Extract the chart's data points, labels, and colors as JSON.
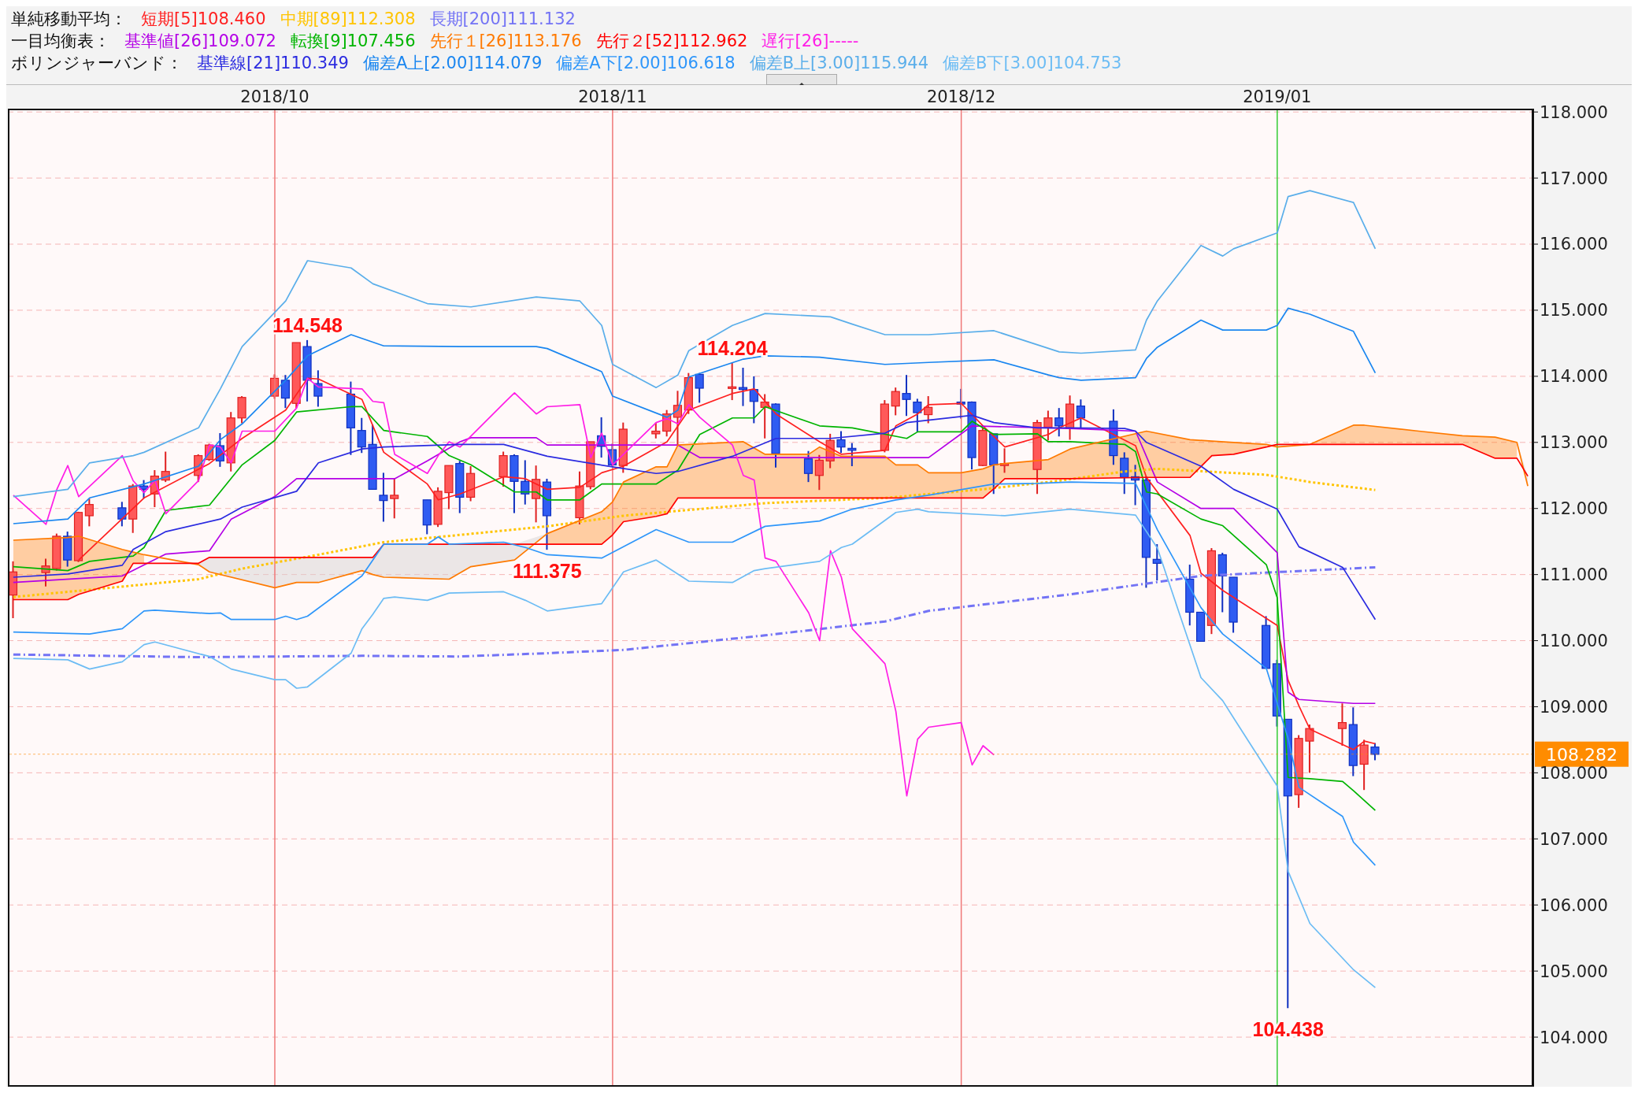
{
  "chart_data": {
    "type": "candlestick",
    "legend": "top",
    "grid": "y",
    "xlim": [
      "2018-09-07",
      "2019-01-24"
    ],
    "xticks": [
      {
        "value": "2018-10-01",
        "label": "2018/10"
      },
      {
        "value": "2018-11-01",
        "label": "2018/11"
      },
      {
        "value": "2018-12-03",
        "label": "2018/12"
      },
      {
        "value": "2019-01-01",
        "label": "2019/01"
      }
    ],
    "ylim": [
      103.25,
      118.05
    ],
    "yticks": [
      {
        "value": 104,
        "label": "104.000"
      },
      {
        "value": 105,
        "label": "105.000"
      },
      {
        "value": 106,
        "label": "106.000"
      },
      {
        "value": 107,
        "label": "107.000"
      },
      {
        "value": 108,
        "label": "108.000"
      },
      {
        "value": 109,
        "label": "109.000"
      },
      {
        "value": 110,
        "label": "110.000"
      },
      {
        "value": 111,
        "label": "111.000"
      },
      {
        "value": 112,
        "label": "112.000"
      },
      {
        "value": 113,
        "label": "113.000"
      },
      {
        "value": 114,
        "label": "114.000"
      },
      {
        "value": 115,
        "label": "115.000"
      },
      {
        "value": 116,
        "label": "116.000"
      },
      {
        "value": 117,
        "label": "117.000"
      },
      {
        "value": 118,
        "label": "118.000"
      }
    ],
    "x": [
      "2018-09-07",
      "2018-09-10",
      "2018-09-11",
      "2018-09-12",
      "2018-09-13",
      "2018-09-14",
      "2018-09-17",
      "2018-09-18",
      "2018-09-19",
      "2018-09-20",
      "2018-09-21",
      "2018-09-24",
      "2018-09-25",
      "2018-09-26",
      "2018-09-27",
      "2018-09-28",
      "2018-10-01",
      "2018-10-02",
      "2018-10-03",
      "2018-10-04",
      "2018-10-05",
      "2018-10-08",
      "2018-10-09",
      "2018-10-10",
      "2018-10-11",
      "2018-10-12",
      "2018-10-15",
      "2018-10-16",
      "2018-10-17",
      "2018-10-18",
      "2018-10-19",
      "2018-10-22",
      "2018-10-23",
      "2018-10-24",
      "2018-10-25",
      "2018-10-26",
      "2018-10-29",
      "2018-10-30",
      "2018-10-31",
      "2018-11-01",
      "2018-11-02",
      "2018-11-05",
      "2018-11-06",
      "2018-11-07",
      "2018-11-08",
      "2018-11-09",
      "2018-11-12",
      "2018-11-13",
      "2018-11-14",
      "2018-11-15",
      "2018-11-16",
      "2018-11-19",
      "2018-11-20",
      "2018-11-21",
      "2018-11-22",
      "2018-11-23",
      "2018-11-26",
      "2018-11-27",
      "2018-11-28",
      "2018-11-29",
      "2018-11-30",
      "2018-12-03",
      "2018-12-04",
      "2018-12-05",
      "2018-12-06",
      "2018-12-07",
      "2018-12-10",
      "2018-12-11",
      "2018-12-12",
      "2018-12-13",
      "2018-12-14",
      "2018-12-17",
      "2018-12-18",
      "2018-12-19",
      "2018-12-20",
      "2018-12-21",
      "2018-12-24",
      "2018-12-25",
      "2018-12-26",
      "2018-12-27",
      "2018-12-28",
      "2018-12-31",
      "2019-01-01",
      "2019-01-02",
      "2019-01-03",
      "2019-01-04",
      "2019-01-07",
      "2019-01-08",
      "2019-01-09",
      "2019-01-10"
    ],
    "ohlc": [
      [
        110.69,
        111.2,
        110.34,
        111.04
      ],
      [
        111.03,
        111.24,
        110.82,
        111.13
      ],
      [
        111.09,
        111.62,
        111.06,
        111.58
      ],
      [
        111.58,
        111.65,
        111.12,
        111.22
      ],
      [
        111.21,
        111.95,
        111.19,
        111.94
      ],
      [
        111.89,
        112.15,
        111.73,
        112.06
      ],
      [
        112.01,
        112.1,
        111.73,
        111.84
      ],
      [
        111.84,
        112.37,
        111.63,
        112.34
      ],
      [
        112.34,
        112.43,
        112.15,
        112.29
      ],
      [
        112.22,
        112.58,
        112.02,
        112.49
      ],
      [
        112.43,
        112.86,
        112.4,
        112.56
      ],
      [
        112.5,
        112.82,
        112.4,
        112.8
      ],
      [
        112.74,
        112.98,
        112.72,
        112.96
      ],
      [
        112.95,
        113.14,
        112.63,
        112.72
      ],
      [
        112.69,
        113.46,
        112.56,
        113.37
      ],
      [
        113.37,
        113.7,
        113.29,
        113.68
      ],
      [
        113.7,
        114.03,
        113.66,
        113.97
      ],
      [
        113.94,
        114.02,
        113.52,
        113.67
      ],
      [
        113.59,
        114.51,
        113.52,
        114.51
      ],
      [
        114.45,
        114.548,
        113.62,
        113.94
      ],
      [
        113.89,
        114.09,
        113.54,
        113.7
      ],
      [
        113.73,
        113.92,
        112.81,
        113.22
      ],
      [
        113.18,
        113.37,
        112.84,
        112.93
      ],
      [
        112.97,
        113.27,
        112.29,
        112.29
      ],
      [
        112.2,
        112.54,
        111.8,
        112.12
      ],
      [
        112.15,
        112.45,
        111.85,
        112.2
      ],
      [
        112.13,
        112.13,
        111.61,
        111.75
      ],
      [
        111.76,
        112.32,
        111.72,
        112.26
      ],
      [
        112.24,
        112.65,
        111.99,
        112.65
      ],
      [
        112.68,
        112.72,
        111.93,
        112.17
      ],
      [
        112.17,
        112.64,
        112.11,
        112.53
      ],
      [
        112.48,
        112.86,
        112.33,
        112.8
      ],
      [
        112.8,
        112.82,
        111.93,
        112.41
      ],
      [
        112.41,
        112.73,
        112.06,
        112.22
      ],
      [
        112.15,
        112.65,
        111.79,
        112.44
      ],
      [
        112.4,
        112.45,
        111.375,
        111.89
      ],
      [
        111.86,
        112.56,
        111.76,
        112.34
      ],
      [
        112.33,
        113.01,
        112.29,
        113.01
      ],
      [
        113.1,
        113.38,
        112.77,
        112.94
      ],
      [
        112.89,
        112.98,
        112.64,
        112.66
      ],
      [
        112.65,
        113.3,
        112.54,
        113.2
      ],
      [
        113.13,
        113.3,
        113.06,
        113.17
      ],
      [
        113.17,
        113.49,
        113.09,
        113.43
      ],
      [
        113.38,
        113.78,
        112.96,
        113.56
      ],
      [
        113.49,
        114.05,
        113.43,
        113.98
      ],
      [
        114.03,
        114.05,
        113.6,
        113.82
      ],
      [
        113.82,
        114.204,
        113.64,
        113.84
      ],
      [
        113.83,
        114.13,
        113.55,
        113.8
      ],
      [
        113.8,
        114.0,
        113.29,
        113.62
      ],
      [
        113.53,
        113.73,
        113.06,
        113.61
      ],
      [
        113.58,
        113.59,
        112.62,
        112.83
      ],
      [
        112.75,
        112.87,
        112.4,
        112.53
      ],
      [
        112.5,
        112.81,
        112.28,
        112.73
      ],
      [
        112.72,
        113.13,
        112.61,
        113.03
      ],
      [
        113.04,
        113.17,
        112.84,
        112.93
      ],
      [
        112.91,
        112.99,
        112.64,
        112.88
      ],
      [
        112.88,
        113.64,
        112.85,
        113.58
      ],
      [
        113.55,
        113.83,
        113.41,
        113.77
      ],
      [
        113.74,
        114.02,
        113.4,
        113.65
      ],
      [
        113.61,
        113.66,
        113.16,
        113.45
      ],
      [
        113.42,
        113.7,
        113.29,
        113.53
      ],
      [
        113.61,
        113.81,
        113.36,
        113.58
      ],
      [
        113.61,
        113.62,
        112.59,
        112.77
      ],
      [
        112.65,
        113.22,
        112.64,
        113.18
      ],
      [
        113.13,
        113.13,
        112.22,
        112.66
      ],
      [
        112.65,
        112.91,
        112.54,
        112.68
      ],
      [
        112.59,
        113.34,
        112.22,
        113.3
      ],
      [
        113.23,
        113.48,
        113.03,
        113.37
      ],
      [
        113.37,
        113.52,
        113.09,
        113.25
      ],
      [
        113.21,
        113.71,
        113.04,
        113.58
      ],
      [
        113.55,
        113.65,
        113.21,
        113.37
      ],
      [
        113.32,
        113.5,
        112.66,
        112.8
      ],
      [
        112.76,
        112.85,
        112.22,
        112.47
      ],
      [
        112.48,
        112.66,
        112.05,
        112.43
      ],
      [
        112.43,
        112.49,
        110.8,
        111.26
      ],
      [
        111.23,
        111.46,
        110.91,
        111.17
      ],
      [
        110.93,
        111.15,
        110.23,
        110.43
      ],
      [
        110.43,
        110.43,
        109.99,
        109.99
      ],
      [
        110.23,
        111.4,
        110.1,
        111.36
      ],
      [
        111.3,
        111.33,
        110.43,
        110.98
      ],
      [
        110.96,
        110.96,
        110.12,
        110.28
      ],
      [
        110.23,
        110.37,
        109.58,
        109.58
      ],
      [
        109.65,
        109.71,
        108.7,
        108.86
      ],
      [
        108.81,
        108.81,
        104.438,
        107.65
      ],
      [
        107.67,
        108.57,
        107.47,
        108.52
      ],
      [
        108.48,
        108.73,
        108.0,
        108.67
      ],
      [
        108.67,
        109.05,
        108.41,
        108.76
      ],
      [
        108.73,
        108.99,
        107.95,
        108.11
      ],
      [
        108.13,
        108.5,
        107.74,
        108.42
      ],
      [
        108.39,
        108.45,
        108.19,
        108.28
      ]
    ],
    "series": [
      {
        "name": "短期[5]108.460",
        "type": "line",
        "color": "#ff2020",
        "x": [
          "2018-09-13",
          "2018-09-19",
          "2018-09-25",
          "2018-09-28",
          "2018-10-02",
          "2018-10-04",
          "2018-10-05",
          "2018-10-09",
          "2018-10-11",
          "2018-10-15",
          "2018-10-16",
          "2018-10-18",
          "2018-10-22",
          "2018-10-24",
          "2018-10-26",
          "2018-10-29",
          "2018-10-31",
          "2018-11-02",
          "2018-11-06",
          "2018-11-08",
          "2018-11-12",
          "2018-11-14",
          "2018-11-16",
          "2018-11-20",
          "2018-11-22",
          "2018-11-26",
          "2018-11-27",
          "2018-11-29",
          "2018-11-30",
          "2018-12-03",
          "2018-12-05",
          "2018-12-07",
          "2018-12-11",
          "2018-12-12",
          "2018-12-14",
          "2018-12-19",
          "2018-12-20",
          "2018-12-24",
          "2018-12-25",
          "2018-12-27",
          "2019-01-01",
          "2019-01-02",
          "2019-01-03",
          "2019-01-04",
          "2019-01-08",
          "2019-01-09",
          "2019-01-10"
        ],
        "values": [
          111.22,
          112.16,
          112.68,
          113.06,
          113.49,
          113.97,
          113.96,
          113.65,
          112.85,
          112.37,
          112.13,
          112.22,
          112.48,
          112.45,
          112.29,
          112.32,
          112.54,
          112.64,
          113.01,
          113.49,
          113.74,
          113.81,
          113.43,
          113.01,
          112.82,
          112.88,
          113.25,
          113.43,
          113.57,
          113.59,
          113.25,
          112.93,
          113.12,
          113.22,
          113.37,
          112.95,
          112.47,
          111.59,
          111.02,
          110.76,
          110.23,
          109.4,
          109.01,
          108.66,
          108.35,
          108.48,
          108.44
        ]
      },
      {
        "name": "中期[89]112.308",
        "type": "line",
        "color": "#ffc400",
        "line_style": "dotted",
        "x": [
          "2018-09-07",
          "2018-09-14",
          "2018-09-24",
          "2018-09-28",
          "2018-10-05",
          "2018-10-11",
          "2018-10-18",
          "2018-10-26",
          "2018-11-02",
          "2018-11-15",
          "2018-11-26",
          "2018-12-05",
          "2018-12-12",
          "2018-12-18",
          "2018-12-21",
          "2018-12-31",
          "2019-01-04",
          "2019-01-10"
        ],
        "values": [
          110.66,
          110.77,
          110.93,
          111.09,
          111.3,
          111.49,
          111.6,
          111.73,
          111.89,
          112.08,
          112.16,
          112.29,
          112.42,
          112.56,
          112.6,
          112.51,
          112.4,
          112.28
        ]
      },
      {
        "name": "長期[200]111.132",
        "type": "line",
        "color": "#7373f5",
        "line_style": "dashed",
        "x": [
          "2018-09-07",
          "2018-09-24",
          "2018-10-09",
          "2018-10-18",
          "2018-10-26",
          "2018-11-02",
          "2018-11-15",
          "2018-11-26",
          "2018-11-30",
          "2018-12-13",
          "2018-12-25",
          "2019-01-10"
        ],
        "values": [
          109.79,
          109.75,
          109.77,
          109.76,
          109.81,
          109.86,
          110.08,
          110.29,
          110.45,
          110.7,
          110.98,
          111.11
        ]
      },
      {
        "name": "基準値[26]109.072",
        "type": "line",
        "color": "#b400e6",
        "x": [
          "2018-09-07",
          "2018-09-17",
          "2018-09-21",
          "2018-09-25",
          "2018-09-27",
          "2018-10-01",
          "2018-10-03",
          "2018-10-12",
          "2018-10-15",
          "2018-10-18",
          "2018-10-19",
          "2018-10-25",
          "2018-10-26",
          "2018-11-07",
          "2018-11-09",
          "2018-11-30",
          "2018-12-04",
          "2018-12-13",
          "2018-12-19",
          "2018-12-21",
          "2018-12-25",
          "2018-12-28",
          "2019-01-01",
          "2019-01-02",
          "2019-01-03",
          "2019-01-08",
          "2019-01-10"
        ],
        "values": [
          110.88,
          110.98,
          111.31,
          111.36,
          111.84,
          112.18,
          112.45,
          112.45,
          112.72,
          113.01,
          113.07,
          113.07,
          112.96,
          112.96,
          112.77,
          112.77,
          113.25,
          113.21,
          113.17,
          112.4,
          112.0,
          112.0,
          111.33,
          109.22,
          109.11,
          109.05,
          109.05
        ]
      },
      {
        "name": "転換[9]107.456",
        "type": "line",
        "color": "#00b400",
        "x": [
          "2018-09-07",
          "2018-09-12",
          "2018-09-14",
          "2018-09-18",
          "2018-09-19",
          "2018-09-21",
          "2018-09-25",
          "2018-09-28",
          "2018-10-01",
          "2018-10-03",
          "2018-10-08",
          "2018-10-09",
          "2018-10-11",
          "2018-10-15",
          "2018-10-17",
          "2018-10-19",
          "2018-10-23",
          "2018-10-25",
          "2018-10-26",
          "2018-10-29",
          "2018-10-31",
          "2018-11-05",
          "2018-11-07",
          "2018-11-09",
          "2018-11-12",
          "2018-11-14",
          "2018-11-15",
          "2018-11-20",
          "2018-11-23",
          "2018-11-28",
          "2018-11-29",
          "2018-12-03",
          "2018-12-04",
          "2018-12-06",
          "2018-12-10",
          "2018-12-11",
          "2018-12-13",
          "2018-12-18",
          "2018-12-19",
          "2018-12-20",
          "2018-12-21",
          "2018-12-25",
          "2018-12-27",
          "2018-12-31",
          "2019-01-01",
          "2019-01-02",
          "2019-01-04",
          "2019-01-07",
          "2019-01-08",
          "2019-01-10"
        ],
        "values": [
          111.12,
          111.06,
          111.2,
          111.28,
          111.41,
          111.97,
          112.05,
          112.66,
          113.03,
          113.46,
          113.54,
          113.54,
          113.18,
          113.09,
          112.8,
          112.66,
          112.25,
          112.25,
          112.13,
          112.13,
          112.37,
          112.37,
          112.58,
          113.12,
          113.37,
          113.37,
          113.54,
          113.25,
          113.22,
          113.06,
          113.16,
          113.16,
          113.32,
          113.12,
          113.13,
          113.01,
          113.01,
          112.97,
          112.86,
          112.25,
          112.22,
          111.84,
          111.74,
          111.15,
          110.65,
          107.93,
          107.91,
          107.87,
          107.73,
          107.43
        ]
      },
      {
        "name": "先行１[26]113.176",
        "type": "line",
        "color": "#ff7a00",
        "x": [
          "2018-09-07",
          "2018-09-12",
          "2018-09-13",
          "2018-09-17",
          "2018-09-18",
          "2018-09-19",
          "2018-09-24",
          "2018-09-25",
          "2018-10-01",
          "2018-10-03",
          "2018-10-05",
          "2018-10-09",
          "2018-10-10",
          "2018-10-11",
          "2018-10-17",
          "2018-10-19",
          "2018-10-23",
          "2018-10-26",
          "2018-10-31",
          "2018-11-01",
          "2018-11-02",
          "2018-11-05",
          "2018-11-06",
          "2018-11-07",
          "2018-11-13",
          "2018-11-15",
          "2018-11-19",
          "2018-11-20",
          "2018-11-22",
          "2018-11-26",
          "2018-11-27",
          "2018-11-29",
          "2018-11-30",
          "2018-12-03",
          "2018-12-05",
          "2018-12-06",
          "2018-12-07",
          "2018-12-11",
          "2018-12-13",
          "2018-12-20",
          "2018-12-24",
          "2018-12-26",
          "2018-12-28",
          "2018-12-31",
          "2019-01-01",
          "2019-01-04",
          "2019-01-08",
          "2019-01-09",
          "2019-01-14",
          "2019-01-18",
          "2019-01-21",
          "2019-01-23",
          "2019-01-24"
        ],
        "values": [
          111.52,
          111.56,
          111.58,
          111.38,
          111.34,
          111.3,
          111.15,
          111.04,
          110.8,
          110.88,
          110.88,
          111.06,
          111.0,
          110.96,
          110.93,
          111.12,
          111.22,
          111.62,
          111.95,
          112.1,
          112.4,
          112.63,
          112.63,
          112.96,
          113.01,
          112.82,
          112.82,
          112.93,
          112.79,
          112.79,
          112.66,
          112.66,
          112.54,
          112.54,
          112.6,
          112.66,
          112.68,
          112.74,
          112.9,
          113.17,
          113.04,
          113.02,
          113.0,
          112.97,
          112.93,
          112.97,
          113.26,
          113.26,
          113.17,
          113.1,
          113.08,
          113.0,
          112.34
        ],
        "upper": [
          111.52,
          111.56,
          111.58,
          111.38,
          111.34,
          111.3,
          null,
          null,
          null,
          null,
          null,
          null,
          null,
          null,
          null,
          null,
          null,
          111.62,
          111.95,
          112.1,
          112.4,
          112.63,
          112.63,
          112.96,
          113.01,
          112.82,
          112.82,
          112.93,
          112.79,
          112.79,
          112.66,
          112.66,
          112.54,
          112.54,
          112.6,
          112.66,
          112.68,
          112.74,
          112.9,
          113.17,
          113.04,
          113.02,
          113.0,
          112.97,
          null,
          112.97,
          113.26,
          113.26,
          113.17,
          113.1,
          113.08,
          113.0,
          null
        ],
        "lower": [
          110.62,
          110.62,
          110.7,
          110.9,
          111.17,
          111.17,
          null,
          null,
          null,
          null,
          null,
          null,
          null,
          null,
          null,
          null,
          null,
          111.46,
          111.46,
          111.6,
          111.8,
          111.88,
          111.92,
          112.16,
          112.16,
          112.16,
          112.16,
          112.16,
          112.16,
          112.16,
          112.16,
          112.16,
          112.16,
          112.16,
          112.16,
          112.3,
          112.45,
          112.45,
          112.45,
          112.47,
          112.47,
          112.8,
          112.82,
          112.93,
          null,
          112.97,
          112.97,
          112.97,
          112.97,
          112.97,
          112.76,
          112.76,
          null
        ]
      },
      {
        "name": "先行２[52]112.962",
        "type": "line",
        "color": "#ff0000",
        "x": [
          "2018-09-07",
          "2018-09-12",
          "2018-09-13",
          "2018-09-17",
          "2018-09-18",
          "2018-09-19",
          "2018-09-24",
          "2018-09-25",
          "2018-10-01",
          "2018-10-03",
          "2018-10-05",
          "2018-10-09",
          "2018-10-10",
          "2018-10-11",
          "2018-10-17",
          "2018-10-19",
          "2018-10-23",
          "2018-10-26",
          "2018-10-31",
          "2018-11-01",
          "2018-11-02",
          "2018-11-05",
          "2018-11-06",
          "2018-11-07",
          "2018-11-13",
          "2018-11-15",
          "2018-11-19",
          "2018-11-20",
          "2018-11-22",
          "2018-11-26",
          "2018-11-27",
          "2018-11-29",
          "2018-11-30",
          "2018-12-03",
          "2018-12-05",
          "2018-12-06",
          "2018-12-07",
          "2018-12-11",
          "2018-12-13",
          "2018-12-20",
          "2018-12-24",
          "2018-12-26",
          "2018-12-28",
          "2018-12-31",
          "2019-01-01",
          "2019-01-04",
          "2019-01-08",
          "2019-01-09",
          "2019-01-14",
          "2019-01-18",
          "2019-01-21",
          "2019-01-23",
          "2019-01-24"
        ],
        "values": [
          110.62,
          110.62,
          110.7,
          110.9,
          111.17,
          111.17,
          111.17,
          111.26,
          111.26,
          111.26,
          111.26,
          111.26,
          111.26,
          111.46,
          111.46,
          111.46,
          111.46,
          111.46,
          111.46,
          111.6,
          111.8,
          111.88,
          111.92,
          112.16,
          112.16,
          112.16,
          112.16,
          112.16,
          112.16,
          112.16,
          112.16,
          112.16,
          112.16,
          112.16,
          112.16,
          112.3,
          112.45,
          112.45,
          112.45,
          112.47,
          112.47,
          112.8,
          112.82,
          112.93,
          112.97,
          112.97,
          112.97,
          112.97,
          112.97,
          112.97,
          112.76,
          112.76,
          112.49
        ]
      },
      {
        "name": "遅行[26]-----",
        "type": "line",
        "color": "#ff1ee6",
        "x": [
          "2018-09-07",
          "2018-09-10",
          "2018-09-11",
          "2018-09-12",
          "2018-09-13",
          "2018-09-17",
          "2018-09-18",
          "2018-09-19",
          "2018-09-20",
          "2018-09-21",
          "2018-09-24",
          "2018-09-25",
          "2018-09-26",
          "2018-09-27",
          "2018-09-28",
          "2018-10-01",
          "2018-10-03",
          "2018-10-04",
          "2018-10-05",
          "2018-10-09",
          "2018-10-10",
          "2018-10-11",
          "2018-10-12",
          "2018-10-15",
          "2018-10-16",
          "2018-10-17",
          "2018-10-18",
          "2018-10-22",
          "2018-10-23",
          "2018-10-25",
          "2018-10-26",
          "2018-10-29",
          "2018-10-30",
          "2018-10-31",
          "2018-11-01",
          "2018-11-05",
          "2018-11-06",
          "2018-11-07",
          "2018-11-08",
          "2018-11-09",
          "2018-11-12",
          "2018-11-13",
          "2018-11-14",
          "2018-11-15",
          "2018-11-16",
          "2018-11-19",
          "2018-11-20",
          "2018-11-21",
          "2018-11-22",
          "2018-11-23",
          "2018-11-26",
          "2018-11-27",
          "2018-11-28",
          "2018-11-29",
          "2018-11-30",
          "2018-12-03",
          "2018-12-04",
          "2018-12-05",
          "2018-12-06"
        ],
        "values": [
          112.2,
          111.76,
          112.29,
          112.65,
          112.18,
          112.8,
          112.42,
          112.24,
          112.43,
          111.92,
          112.42,
          112.96,
          112.93,
          112.69,
          113.17,
          113.17,
          113.52,
          113.97,
          113.84,
          113.81,
          113.62,
          113.6,
          112.82,
          112.53,
          112.8,
          113.01,
          112.93,
          113.59,
          113.75,
          113.43,
          113.54,
          113.57,
          112.77,
          113.14,
          112.66,
          113.3,
          113.36,
          113.28,
          113.57,
          113.38,
          112.96,
          112.5,
          112.43,
          111.25,
          111.2,
          110.42,
          110.0,
          111.36,
          110.96,
          110.18,
          109.65,
          108.93,
          107.65,
          108.51,
          108.69,
          108.76,
          108.12,
          108.41,
          108.27
        ]
      },
      {
        "name": "基準線[21]110.349",
        "type": "line",
        "color": "#2b2be0",
        "x": [
          "2018-09-07",
          "2018-09-12",
          "2018-09-17",
          "2018-09-18",
          "2018-09-21",
          "2018-09-26",
          "2018-09-28",
          "2018-10-03",
          "2018-10-05",
          "2018-10-09",
          "2018-10-11",
          "2018-10-18",
          "2018-10-22",
          "2018-10-26",
          "2018-11-01",
          "2018-11-05",
          "2018-11-07",
          "2018-11-12",
          "2018-11-16",
          "2018-11-21",
          "2018-11-26",
          "2018-11-28",
          "2018-12-04",
          "2018-12-06",
          "2018-12-10",
          "2018-12-13",
          "2018-12-18",
          "2018-12-19",
          "2018-12-20",
          "2018-12-25",
          "2018-12-28",
          "2019-01-01",
          "2019-01-03",
          "2019-01-07",
          "2019-01-10"
        ],
        "values": [
          110.96,
          111.01,
          111.14,
          111.38,
          111.65,
          111.84,
          112.02,
          112.26,
          112.69,
          112.9,
          112.93,
          112.97,
          112.97,
          112.79,
          112.63,
          112.53,
          112.56,
          112.79,
          113.06,
          113.06,
          113.14,
          113.3,
          113.41,
          113.3,
          113.22,
          113.22,
          113.21,
          113.17,
          113.0,
          112.64,
          112.29,
          111.99,
          111.42,
          111.11,
          110.32
        ]
      },
      {
        "name": "偏差A上[2.00]114.079",
        "type": "line",
        "color": "#1a86f0",
        "x": [
          "2018-09-07",
          "2018-09-12",
          "2018-09-14",
          "2018-09-19",
          "2018-09-24",
          "2018-09-26",
          "2018-09-28",
          "2018-10-02",
          "2018-10-04",
          "2018-10-08",
          "2018-10-11",
          "2018-10-18",
          "2018-10-25",
          "2018-10-26",
          "2018-10-31",
          "2018-11-01",
          "2018-11-06",
          "2018-11-07",
          "2018-11-08",
          "2018-11-13",
          "2018-11-15",
          "2018-11-20",
          "2018-11-26",
          "2018-11-30",
          "2018-12-06",
          "2018-12-11",
          "2018-12-12",
          "2018-12-14",
          "2018-12-19",
          "2018-12-20",
          "2018-12-21",
          "2018-12-25",
          "2018-12-27",
          "2018-12-31",
          "2019-01-01",
          "2019-01-02",
          "2019-01-04",
          "2019-01-08",
          "2019-01-10"
        ],
        "values": [
          111.77,
          111.84,
          112.16,
          112.37,
          112.64,
          113.04,
          113.28,
          113.94,
          114.31,
          114.63,
          114.46,
          114.45,
          114.45,
          114.42,
          114.07,
          113.7,
          113.38,
          113.49,
          113.99,
          114.26,
          114.31,
          114.29,
          114.18,
          114.21,
          114.25,
          114.02,
          113.98,
          113.94,
          113.98,
          114.27,
          114.44,
          114.85,
          114.7,
          114.7,
          114.77,
          115.03,
          114.94,
          114.68,
          114.05
        ]
      },
      {
        "name": "偏差A下[2.00]106.618",
        "type": "line",
        "color": "#2e96fa",
        "x": [
          "2018-09-07",
          "2018-09-14",
          "2018-09-17",
          "2018-09-19",
          "2018-09-20",
          "2018-09-25",
          "2018-09-26",
          "2018-09-27",
          "2018-10-01",
          "2018-10-02",
          "2018-10-03",
          "2018-10-04",
          "2018-10-09",
          "2018-10-11",
          "2018-10-15",
          "2018-10-16",
          "2018-10-17",
          "2018-10-22",
          "2018-10-24",
          "2018-10-26",
          "2018-10-31",
          "2018-11-05",
          "2018-11-08",
          "2018-11-12",
          "2018-11-15",
          "2018-11-20",
          "2018-11-23",
          "2018-11-27",
          "2018-11-30",
          "2018-12-06",
          "2018-12-10",
          "2018-12-13",
          "2018-12-19",
          "2018-12-21",
          "2018-12-25",
          "2018-12-27",
          "2018-12-31",
          "2019-01-02",
          "2019-01-03",
          "2019-01-07",
          "2019-01-08",
          "2019-01-10"
        ],
        "values": [
          110.13,
          110.1,
          110.18,
          110.45,
          110.46,
          110.41,
          110.42,
          110.32,
          110.32,
          110.37,
          110.32,
          110.37,
          110.98,
          111.46,
          111.46,
          111.57,
          111.46,
          111.49,
          111.41,
          111.3,
          111.25,
          111.68,
          111.49,
          111.49,
          111.73,
          111.81,
          111.99,
          112.13,
          112.2,
          112.37,
          112.38,
          112.4,
          112.38,
          111.68,
          110.5,
          110.1,
          109.58,
          108.52,
          107.78,
          107.34,
          106.95,
          106.6
        ]
      },
      {
        "name": "偏差B上[3.00]115.944",
        "type": "line",
        "color": "#5aaeea",
        "x": [
          "2018-09-07",
          "2018-09-12",
          "2018-09-14",
          "2018-09-18",
          "2018-09-19",
          "2018-09-24",
          "2018-09-26",
          "2018-09-28",
          "2018-10-02",
          "2018-10-04",
          "2018-10-08",
          "2018-10-10",
          "2018-10-15",
          "2018-10-19",
          "2018-10-25",
          "2018-10-29",
          "2018-10-31",
          "2018-11-01",
          "2018-11-05",
          "2018-11-07",
          "2018-11-08",
          "2018-11-12",
          "2018-11-15",
          "2018-11-21",
          "2018-11-23",
          "2018-11-26",
          "2018-11-30",
          "2018-12-06",
          "2018-12-12",
          "2018-12-14",
          "2018-12-19",
          "2018-12-20",
          "2018-12-21",
          "2018-12-25",
          "2018-12-27",
          "2018-12-28",
          "2019-01-01",
          "2019-01-02",
          "2019-01-04",
          "2019-01-08",
          "2019-01-10"
        ],
        "values": [
          112.18,
          112.29,
          112.69,
          112.8,
          112.85,
          113.22,
          113.81,
          114.45,
          115.14,
          115.75,
          115.64,
          115.4,
          115.1,
          115.05,
          115.2,
          115.14,
          114.77,
          114.18,
          113.83,
          114.02,
          114.39,
          114.77,
          114.95,
          114.9,
          114.79,
          114.63,
          114.63,
          114.69,
          114.37,
          114.35,
          114.4,
          114.85,
          115.14,
          115.98,
          115.82,
          115.93,
          116.17,
          116.72,
          116.81,
          116.63,
          115.93
        ]
      },
      {
        "name": "偏差B下[3.00]104.753",
        "type": "line",
        "color": "#6cbcf4",
        "x": [
          "2018-09-07",
          "2018-09-12",
          "2018-09-14",
          "2018-09-17",
          "2018-09-19",
          "2018-09-20",
          "2018-09-25",
          "2018-09-27",
          "2018-10-01",
          "2018-10-02",
          "2018-10-03",
          "2018-10-04",
          "2018-10-08",
          "2018-10-09",
          "2018-10-10",
          "2018-10-11",
          "2018-10-12",
          "2018-10-15",
          "2018-10-17",
          "2018-10-22",
          "2018-10-24",
          "2018-10-26",
          "2018-10-31",
          "2018-11-02",
          "2018-11-05",
          "2018-11-08",
          "2018-11-12",
          "2018-11-14",
          "2018-11-15",
          "2018-11-20",
          "2018-11-22",
          "2018-11-23",
          "2018-11-27",
          "2018-11-29",
          "2018-11-30",
          "2018-12-07",
          "2018-12-13",
          "2018-12-19",
          "2018-12-21",
          "2018-12-25",
          "2018-12-27",
          "2018-12-28",
          "2019-01-01",
          "2019-01-02",
          "2019-01-04",
          "2019-01-08",
          "2019-01-10"
        ],
        "values": [
          109.73,
          109.71,
          109.57,
          109.68,
          109.94,
          109.98,
          109.76,
          109.57,
          109.41,
          109.41,
          109.28,
          109.3,
          109.81,
          110.18,
          110.4,
          110.64,
          110.66,
          110.61,
          110.72,
          110.74,
          110.61,
          110.45,
          110.56,
          111.04,
          111.22,
          110.9,
          110.88,
          111.06,
          111.09,
          111.2,
          111.41,
          111.46,
          111.94,
          111.99,
          111.95,
          111.89,
          111.99,
          111.9,
          111.4,
          109.44,
          109.09,
          108.83,
          107.8,
          106.51,
          105.72,
          105.02,
          104.75
        ]
      }
    ],
    "ref_lines": [
      {
        "axis": "x",
        "value": "2018-10-01",
        "color": "#f07878"
      },
      {
        "axis": "x",
        "value": "2018-11-01",
        "color": "#f07878"
      },
      {
        "axis": "x",
        "value": "2018-12-03",
        "color": "#f07878"
      },
      {
        "axis": "x",
        "value": "2019-01-01",
        "color": "#33cc33"
      },
      {
        "axis": "y",
        "value": 108.282,
        "label": "108.282",
        "color": "#ff8c00"
      }
    ],
    "annotations": [
      "単純移動平均：",
      "一目均衡表：",
      "ボリンジャーバンド：",
      {
        "text": "114.548",
        "x": "2018-10-04",
        "y": 114.548
      },
      {
        "text": "114.204",
        "x": "2018-11-12",
        "y": 114.204
      },
      {
        "text": "111.375",
        "x": "2018-10-26",
        "y": 111.375
      },
      {
        "text": "104.438",
        "x": "2019-01-02",
        "y": 104.438
      }
    ]
  }
}
